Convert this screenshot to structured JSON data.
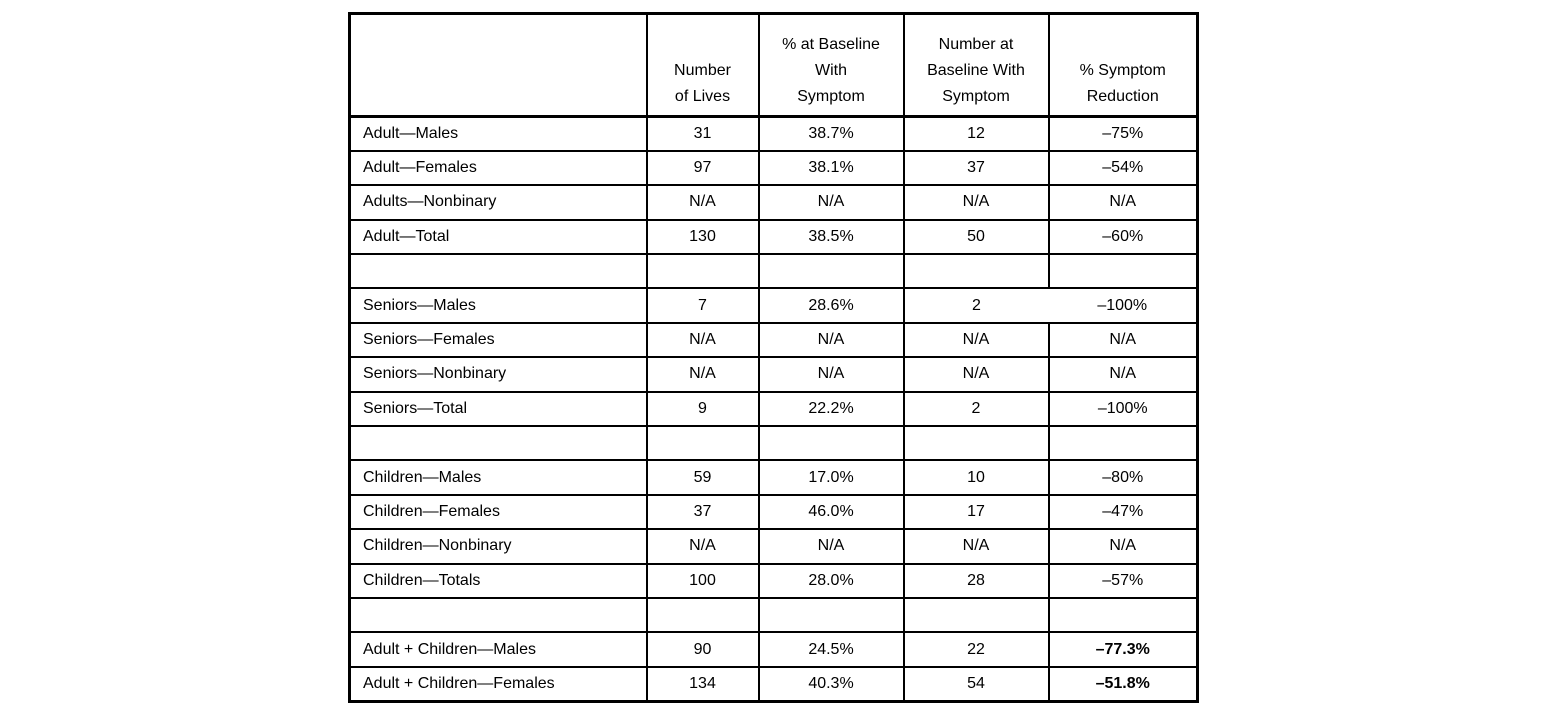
{
  "table": {
    "columns": [
      "",
      "Number\nof Lives",
      "% at Baseline\nWith\nSymptom",
      "Number at\nBaseline With\nSymptom",
      "% Symptom\nReduction"
    ],
    "rows": [
      {
        "label": "Adult—Males",
        "values": [
          "31",
          "38.7%",
          "12",
          "–75%"
        ]
      },
      {
        "label": "Adult—Females",
        "values": [
          "97",
          "38.1%",
          "37",
          "–54%"
        ]
      },
      {
        "label": "Adults—Nonbinary",
        "values": [
          "N/A",
          "N/A",
          "N/A",
          "N/A"
        ]
      },
      {
        "label": "Adult—Total",
        "values": [
          "130",
          "38.5%",
          "50",
          "–60%"
        ]
      },
      {
        "label": "",
        "values": [
          "",
          "",
          "",
          ""
        ],
        "blank": true
      },
      {
        "label": "Seniors—Males",
        "values": [
          "7",
          "28.6%",
          "2",
          "–100%"
        ],
        "missing_divider": true
      },
      {
        "label": "Seniors—Females",
        "values": [
          "N/A",
          "N/A",
          "N/A",
          "N/A"
        ]
      },
      {
        "label": "Seniors—Nonbinary",
        "values": [
          "N/A",
          "N/A",
          "N/A",
          "N/A"
        ]
      },
      {
        "label": "Seniors—Total",
        "values": [
          "9",
          "22.2%",
          "2",
          "–100%"
        ]
      },
      {
        "label": "",
        "values": [
          "",
          "",
          "",
          ""
        ],
        "blank": true
      },
      {
        "label": "Children—Males",
        "values": [
          "59",
          "17.0%",
          "10",
          "–80%"
        ]
      },
      {
        "label": "Children—Females",
        "values": [
          "37",
          "46.0%",
          "17",
          "–47%"
        ]
      },
      {
        "label": "Children—Nonbinary",
        "values": [
          "N/A",
          "N/A",
          "N/A",
          "N/A"
        ]
      },
      {
        "label": "Children—Totals",
        "values": [
          "100",
          "28.0%",
          "28",
          "–57%"
        ]
      },
      {
        "label": "",
        "values": [
          "",
          "",
          "",
          ""
        ],
        "blank": true
      },
      {
        "label": "Adult + Children—Males",
        "values": [
          "90",
          "24.5%",
          "22",
          "–77.3%"
        ],
        "bold_last": true
      },
      {
        "label": "Adult + Children—Females",
        "values": [
          "134",
          "40.3%",
          "54",
          "–51.8%"
        ],
        "bold_last": true
      }
    ],
    "colors": {
      "border": "#000000",
      "text": "#000000",
      "background": "#ffffff"
    }
  }
}
